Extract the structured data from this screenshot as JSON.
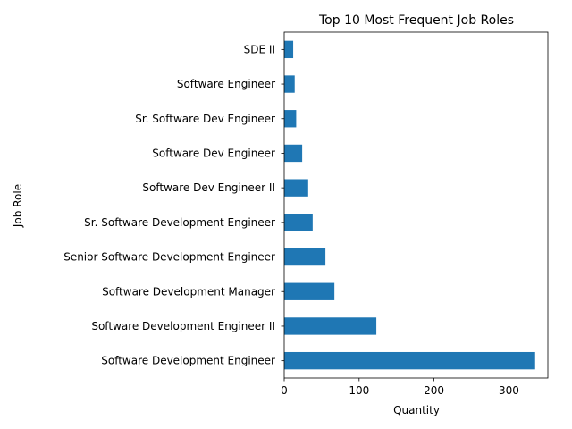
{
  "chart_data": {
    "type": "bar",
    "orientation": "horizontal",
    "title": "Top 10 Most Frequent Job Roles",
    "xlabel": "Quantity",
    "ylabel": "Job Role",
    "categories": [
      "Software Development Engineer",
      "Software Development Engineer II",
      "Software Development Manager",
      "Senior Software Development Engineer",
      "Sr. Software Development Engineer",
      "Software Dev Engineer II",
      "Software Dev Engineer",
      "Sr. Software Dev Engineer",
      "Software Engineer",
      "SDE II"
    ],
    "values": [
      335,
      123,
      67,
      55,
      38,
      32,
      24,
      16,
      14,
      12
    ],
    "xlim": [
      0,
      352
    ],
    "xticks": [
      0,
      100,
      200,
      300
    ],
    "bar_color": "#1f77b4",
    "grid": false
  }
}
